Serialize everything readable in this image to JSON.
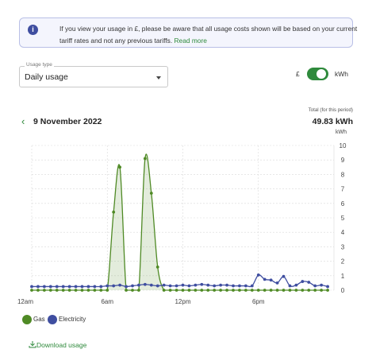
{
  "notice": {
    "text": "If you view your usage in £, please be aware that all usage costs shown will be based on your current tariff rates and not any previous tariffs.",
    "link": "Read more"
  },
  "usage_type": {
    "label": "Usage type",
    "value": "Daily usage"
  },
  "unit_toggle": {
    "left": "£",
    "right": "kWh",
    "selected": "kWh"
  },
  "date": "9 November 2022",
  "total": {
    "label": "Total (for this period)",
    "value": "49.83 kWh"
  },
  "download_label": "Download usage",
  "colors": {
    "gas": "#4f8a25",
    "electricity": "#3f4ea0",
    "accent": "#2f8a3c"
  },
  "chart_data": {
    "type": "line",
    "ylabel": "kWh",
    "ylim": [
      0,
      10
    ],
    "yticks": [
      "0",
      "1",
      "2",
      "3",
      "4",
      "5",
      "6",
      "7",
      "8",
      "9",
      "10"
    ],
    "x_tick_labels": [
      "12am",
      "6am",
      "12pm",
      "6pm"
    ],
    "x_tick_hours": [
      0,
      6,
      12,
      18
    ],
    "grid": true,
    "legend_position": "bottom-left",
    "series": [
      {
        "name": "Gas",
        "color": "#4f8a25",
        "fill": true,
        "x": [
          0,
          0.5,
          1,
          1.5,
          2,
          2.5,
          3,
          3.5,
          4,
          4.5,
          5,
          5.5,
          6,
          6.5,
          7,
          7.5,
          8,
          8.5,
          9,
          9.5,
          10,
          10.5,
          11,
          11.5,
          12,
          12.5,
          13,
          13.5,
          14,
          14.5,
          15,
          15.5,
          16,
          16.5,
          17,
          17.5,
          18,
          18.5,
          19,
          19.5,
          20,
          20.5,
          21,
          21.5,
          22,
          22.5,
          23,
          23.5
        ],
        "values": [
          0,
          0,
          0,
          0,
          0,
          0,
          0,
          0,
          0,
          0,
          0,
          0,
          0,
          5.4,
          8.5,
          0,
          0,
          0,
          9.1,
          6.7,
          1.6,
          0,
          0,
          0,
          0,
          0,
          0,
          0,
          0,
          0,
          0,
          0,
          0,
          0,
          0,
          0,
          0,
          0,
          0,
          0,
          0,
          0,
          0,
          0,
          0,
          0,
          0,
          0
        ]
      },
      {
        "name": "Electricity",
        "color": "#3f4ea0",
        "fill": false,
        "x": [
          0,
          0.5,
          1,
          1.5,
          2,
          2.5,
          3,
          3.5,
          4,
          4.5,
          5,
          5.5,
          6,
          6.5,
          7,
          7.5,
          8,
          8.5,
          9,
          9.5,
          10,
          10.5,
          11,
          11.5,
          12,
          12.5,
          13,
          13.5,
          14,
          14.5,
          15,
          15.5,
          16,
          16.5,
          17,
          17.5,
          18,
          18.5,
          19,
          19.5,
          20,
          20.5,
          21,
          21.5,
          22,
          22.5,
          23,
          23.5
        ],
        "values": [
          0.25,
          0.25,
          0.25,
          0.25,
          0.25,
          0.25,
          0.25,
          0.25,
          0.25,
          0.25,
          0.25,
          0.25,
          0.3,
          0.3,
          0.35,
          0.25,
          0.3,
          0.35,
          0.4,
          0.35,
          0.3,
          0.35,
          0.3,
          0.3,
          0.35,
          0.3,
          0.35,
          0.4,
          0.35,
          0.3,
          0.35,
          0.35,
          0.3,
          0.3,
          0.3,
          0.3,
          1.05,
          0.75,
          0.7,
          0.5,
          0.95,
          0.3,
          0.35,
          0.6,
          0.55,
          0.3,
          0.35,
          0.25
        ]
      }
    ]
  }
}
